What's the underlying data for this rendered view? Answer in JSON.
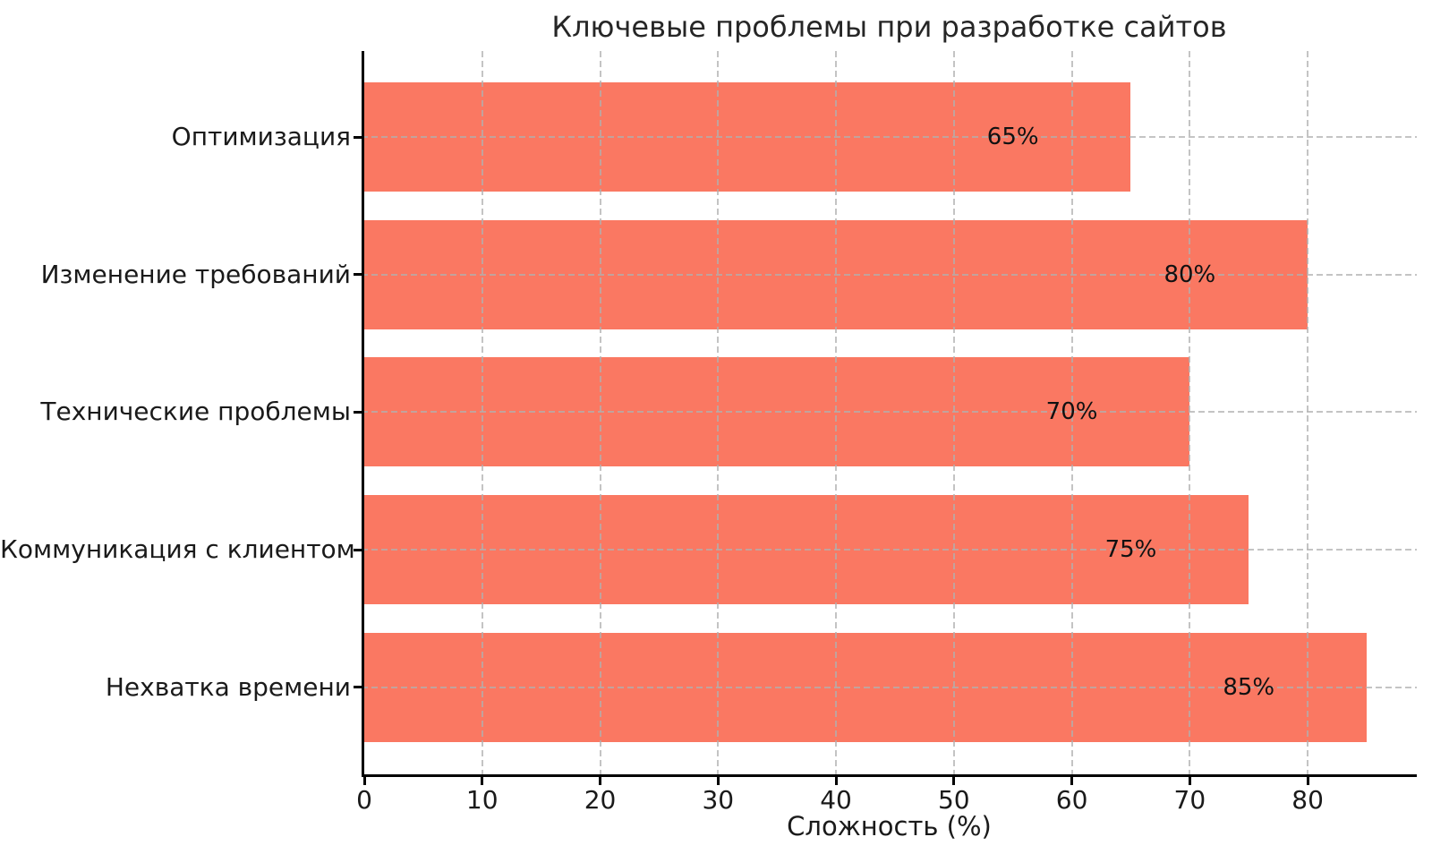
{
  "figure": {
    "background": "#ffffff"
  },
  "chart_data": {
    "type": "bar",
    "orientation": "horizontal",
    "title": "Ключевые проблемы при разработке сайтов",
    "xlabel": "Сложность (%)",
    "ylabel": "",
    "categories": [
      "Оптимизация",
      "Изменение требований",
      "Технические проблемы",
      "Коммуникация с клиентом",
      "Нехватка времени"
    ],
    "values": [
      65,
      80,
      70,
      75,
      85
    ],
    "bar_labels": [
      "65%",
      "80%",
      "70%",
      "75%",
      "85%"
    ],
    "xticks": [
      0,
      10,
      20,
      30,
      40,
      50,
      60,
      70,
      80
    ],
    "xtick_labels": [
      "0",
      "10",
      "20",
      "30",
      "40",
      "50",
      "60",
      "70",
      "80"
    ],
    "xlim": [
      0,
      89.25
    ],
    "grid": "dashed-both-axes-over-bars",
    "legend": "none",
    "bar_color": "#fa7862",
    "grid_color": "#b0b0b0",
    "text_color": "#1a1a1a",
    "spine_color": "#000000"
  }
}
